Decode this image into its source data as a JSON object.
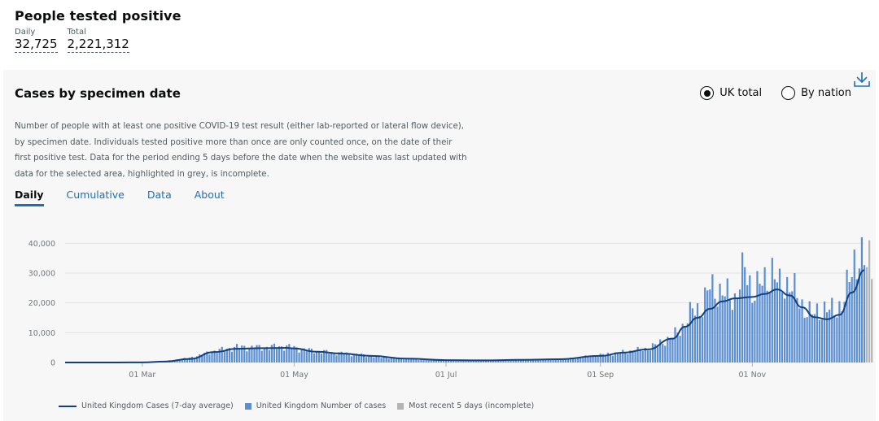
{
  "header": {
    "title": "People tested positive",
    "daily_label": "Daily",
    "daily_value": "32,725",
    "total_label": "Total",
    "total_value": "2,221,312"
  },
  "card": {
    "title": "Cases by specimen date",
    "radios": [
      {
        "label": "UK total",
        "selected": true
      },
      {
        "label": "By nation",
        "selected": false
      }
    ],
    "description": "Number of people with at least one positive COVID-19 test result (either lab-reported or lateral flow device), by specimen date. Individuals tested positive more than once are only counted once, on the date of their first positive test. Data for the period ending 5 days before the date when the website was last updated with data for the selected area, highlighted in grey, is incomplete.",
    "tabs": [
      {
        "label": "Daily",
        "active": true
      },
      {
        "label": "Cumulative",
        "active": false
      },
      {
        "label": "Data",
        "active": false
      },
      {
        "label": "About",
        "active": false
      }
    ]
  },
  "colors": {
    "line": "#12407f",
    "bar": "#5b8fd1",
    "incomplete": "#b4b4b4",
    "grid": "#e3e3e3",
    "axis_text": "#6f777b"
  },
  "chart_data": {
    "type": "bar",
    "x_start": "2020-01-30",
    "x_end": "2020-12-16",
    "x_ticks": [
      {
        "label": "01 Mar",
        "date": "2020-03-01"
      },
      {
        "label": "01 May",
        "date": "2020-05-01"
      },
      {
        "label": "01 Jul",
        "date": "2020-07-01"
      },
      {
        "label": "01 Sep",
        "date": "2020-09-01"
      },
      {
        "label": "01 Nov",
        "date": "2020-11-01"
      }
    ],
    "y_ticks": [
      0,
      10000,
      20000,
      30000,
      40000
    ],
    "y_tick_labels": [
      "0",
      "10,000",
      "20,000",
      "30,000",
      "40,000"
    ],
    "ylim": [
      0,
      42000
    ],
    "grid": true,
    "series": [
      {
        "name": "United Kingdom Cases (7-day average)",
        "kind": "line",
        "points": [
          [
            "2020-01-30",
            0
          ],
          [
            "2020-02-20",
            0
          ],
          [
            "2020-03-01",
            50
          ],
          [
            "2020-03-10",
            300
          ],
          [
            "2020-03-20",
            1200
          ],
          [
            "2020-03-30",
            3500
          ],
          [
            "2020-04-08",
            4600
          ],
          [
            "2020-04-18",
            4800
          ],
          [
            "2020-04-28",
            4900
          ],
          [
            "2020-05-01",
            4700
          ],
          [
            "2020-05-10",
            3600
          ],
          [
            "2020-05-20",
            3000
          ],
          [
            "2020-06-01",
            2200
          ],
          [
            "2020-06-15",
            1300
          ],
          [
            "2020-07-01",
            800
          ],
          [
            "2020-07-15",
            700
          ],
          [
            "2020-08-01",
            900
          ],
          [
            "2020-08-15",
            1100
          ],
          [
            "2020-09-01",
            2200
          ],
          [
            "2020-09-10",
            3300
          ],
          [
            "2020-09-20",
            4400
          ],
          [
            "2020-09-30",
            8000
          ],
          [
            "2020-10-05",
            12000
          ],
          [
            "2020-10-10",
            15000
          ],
          [
            "2020-10-15",
            18000
          ],
          [
            "2020-10-20",
            20500
          ],
          [
            "2020-10-25",
            21500
          ],
          [
            "2020-11-01",
            22000
          ],
          [
            "2020-11-06",
            23000
          ],
          [
            "2020-11-11",
            24500
          ],
          [
            "2020-11-16",
            22500
          ],
          [
            "2020-11-21",
            18500
          ],
          [
            "2020-11-26",
            15200
          ],
          [
            "2020-12-01",
            14500
          ],
          [
            "2020-12-06",
            16000
          ],
          [
            "2020-12-11",
            23500
          ],
          [
            "2020-12-16",
            31000
          ]
        ]
      },
      {
        "name": "United Kingdom Number of cases",
        "kind": "bar",
        "points": [
          [
            "2020-03-01",
            60
          ],
          [
            "2020-03-10",
            400
          ],
          [
            "2020-03-20",
            1500
          ],
          [
            "2020-03-30",
            3800
          ],
          [
            "2020-04-08",
            5200
          ],
          [
            "2020-04-18",
            5000
          ],
          [
            "2020-04-28",
            5400
          ],
          [
            "2020-05-05",
            4300
          ],
          [
            "2020-05-15",
            3400
          ],
          [
            "2020-05-25",
            2800
          ],
          [
            "2020-06-05",
            1800
          ],
          [
            "2020-06-20",
            1100
          ],
          [
            "2020-07-05",
            700
          ],
          [
            "2020-07-20",
            750
          ],
          [
            "2020-08-05",
            950
          ],
          [
            "2020-08-20",
            1300
          ],
          [
            "2020-09-01",
            2500
          ],
          [
            "2020-09-10",
            3400
          ],
          [
            "2020-09-20",
            4600
          ],
          [
            "2020-09-30",
            8500
          ],
          [
            "2020-10-05",
            13000
          ],
          [
            "2020-10-08",
            17500
          ],
          [
            "2020-10-12",
            18500
          ],
          [
            "2020-10-15",
            25500
          ],
          [
            "2020-10-20",
            23000
          ],
          [
            "2020-10-25",
            21500
          ],
          [
            "2020-10-29",
            31500
          ],
          [
            "2020-11-01",
            24000
          ],
          [
            "2020-11-06",
            27000
          ],
          [
            "2020-11-09",
            31000
          ],
          [
            "2020-11-12",
            25000
          ],
          [
            "2020-11-16",
            27000
          ],
          [
            "2020-11-20",
            20000
          ],
          [
            "2020-11-25",
            16000
          ],
          [
            "2020-11-30",
            18000
          ],
          [
            "2020-12-04",
            17000
          ],
          [
            "2020-12-08",
            21000
          ],
          [
            "2020-12-12",
            34500
          ],
          [
            "2020-12-14",
            35500
          ],
          [
            "2020-12-16",
            33000
          ]
        ]
      },
      {
        "name": "Most recent 5 days (incomplete)",
        "kind": "bar",
        "points": [
          [
            "2020-12-17",
            32000
          ],
          [
            "2020-12-18",
            41000
          ],
          [
            "2020-12-19",
            28000
          ]
        ]
      }
    ],
    "legend_position": "bottom-left"
  }
}
